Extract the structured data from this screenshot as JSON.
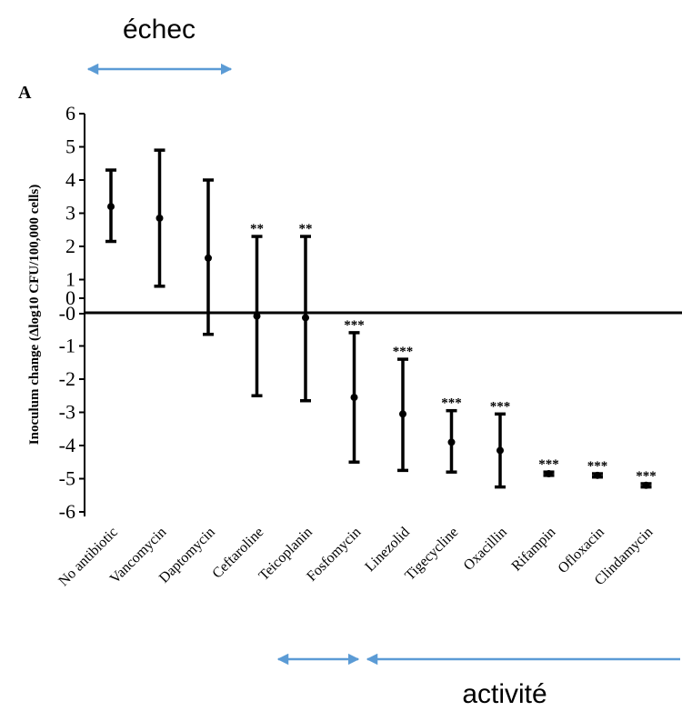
{
  "annotations": {
    "top_label": "échec",
    "bottom_label": "activité",
    "arrow_color": "#5b9bd5"
  },
  "chart_data": {
    "type": "errorbar",
    "panel_label": "A",
    "title": "",
    "xlabel": "",
    "ylabel": "Inoculum change (Δlog10 CFU/100,000 cells)",
    "ylim": [
      -6,
      6
    ],
    "yticks": [
      "6",
      "5",
      "4",
      "3",
      "2",
      "1",
      "0",
      "-0",
      "-1",
      "-2",
      "-3",
      "-4",
      "-5",
      "-6"
    ],
    "categories": [
      "No antibiotic",
      "Vancomycin",
      "Daptomycin",
      "Ceftaroline",
      "Teicoplanin",
      "Fosfomycin",
      "Linezolid",
      "Tigecycline",
      "Oxacillin",
      "Rifampin",
      "Ofloxacin",
      "Clindamycin"
    ],
    "mean": [
      3.2,
      2.85,
      1.65,
      -0.1,
      -0.15,
      -2.55,
      -3.05,
      -3.9,
      -4.15,
      -4.85,
      -4.9,
      -5.2
    ],
    "lower": [
      2.15,
      0.8,
      -0.65,
      -2.5,
      -2.65,
      -4.5,
      -4.75,
      -4.8,
      -5.25,
      -4.9,
      -4.95,
      -5.25
    ],
    "upper": [
      4.3,
      4.9,
      4.0,
      2.3,
      2.3,
      -0.6,
      -1.4,
      -2.95,
      -3.05,
      -4.8,
      -4.85,
      -5.15
    ],
    "significance": [
      "",
      "",
      "",
      "**",
      "**",
      "***",
      "***",
      "***",
      "***",
      "***",
      "***",
      "***"
    ]
  }
}
